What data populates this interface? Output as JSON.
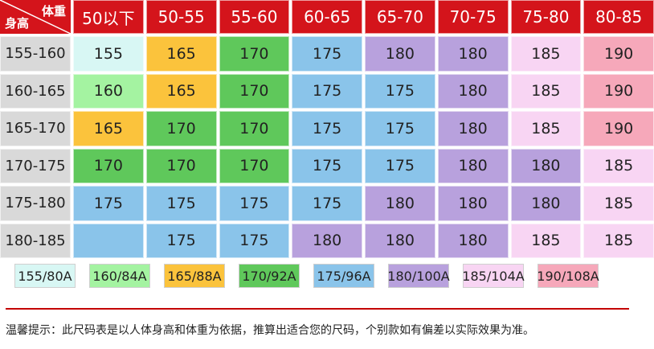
{
  "colors": {
    "155": "#d8f7f4",
    "160": "#a4f3a1",
    "165": "#fbc33c",
    "170": "#5fc85b",
    "175": "#8ac4ea",
    "180": "#b8a1dd",
    "185": "#f8d5f3",
    "190": "#f6a8ba"
  },
  "header": {
    "corner_weight": "体重",
    "corner_height": "身高",
    "weight_ranges": [
      "50以下",
      "50-55",
      "55-60",
      "60-65",
      "65-70",
      "70-75",
      "75-80",
      "80-85"
    ]
  },
  "rows": [
    {
      "height_range": "155-160",
      "sizes": [
        "155",
        "165",
        "170",
        "175",
        "180",
        "180",
        "185",
        "190"
      ]
    },
    {
      "height_range": "160-165",
      "sizes": [
        "160",
        "165",
        "170",
        "175",
        "175",
        "180",
        "185",
        "190"
      ]
    },
    {
      "height_range": "165-170",
      "sizes": [
        "165",
        "170",
        "170",
        "175",
        "175",
        "180",
        "185",
        "190"
      ]
    },
    {
      "height_range": "170-175",
      "sizes": [
        "170",
        "170",
        "170",
        "175",
        "175",
        "180",
        "180",
        "185"
      ]
    },
    {
      "height_range": "175-180",
      "sizes": [
        "175",
        "175",
        "175",
        "175",
        "180",
        "180",
        "180",
        "185"
      ]
    },
    {
      "height_range": "180-185",
      "sizes": [
        "",
        "175",
        "175",
        "180",
        "180",
        "180",
        "185",
        "185"
      ]
    }
  ],
  "row6_first_color": "175",
  "legend": [
    {
      "label": "155/80A",
      "key": "155"
    },
    {
      "label": "160/84A",
      "key": "160"
    },
    {
      "label": "165/88A",
      "key": "165"
    },
    {
      "label": "170/92A",
      "key": "170"
    },
    {
      "label": "175/96A",
      "key": "175"
    },
    {
      "label": "180/100A",
      "key": "180"
    },
    {
      "label": "185/104A",
      "key": "185"
    },
    {
      "label": "190/108A",
      "key": "190"
    }
  ],
  "tip": "温馨提示：此尺码表是以人体身高和体重为依据，推算出适合您的尺码，个别款如有偏差以实际效果为准。"
}
